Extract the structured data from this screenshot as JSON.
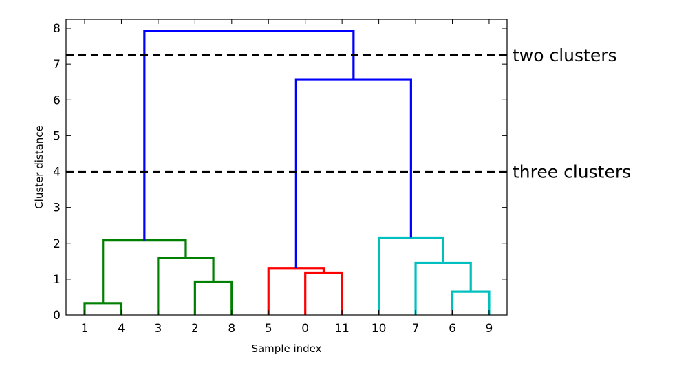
{
  "chart_data": {
    "type": "dendrogram",
    "xlabel": "Sample index",
    "ylabel": "Cluster distance",
    "ylim": [
      0,
      8.25
    ],
    "yticks": [
      0,
      1,
      2,
      3,
      4,
      5,
      6,
      7,
      8
    ],
    "leaves": [
      "1",
      "4",
      "3",
      "2",
      "8",
      "5",
      "0",
      "11",
      "10",
      "7",
      "6",
      "9"
    ],
    "grid": false,
    "links": [
      {
        "left": [
          0,
          0
        ],
        "right": [
          1,
          0
        ],
        "height": 0.33,
        "color": "#008000"
      },
      {
        "left": [
          4,
          0
        ],
        "right": [
          3,
          0
        ],
        "height": 0.93,
        "color": "#008000"
      },
      {
        "left": [
          2,
          0
        ],
        "right": [
          3.5,
          0.93
        ],
        "height": 1.6,
        "color": "#008000"
      },
      {
        "left": [
          0.5,
          0.33
        ],
        "right": [
          2.75,
          1.6
        ],
        "height": 2.08,
        "color": "#008000"
      },
      {
        "left": [
          6,
          0
        ],
        "right": [
          7,
          0
        ],
        "height": 1.18,
        "color": "#ff0000"
      },
      {
        "left": [
          5,
          0
        ],
        "right": [
          6.5,
          1.18
        ],
        "height": 1.31,
        "color": "#ff0000"
      },
      {
        "left": [
          10,
          0
        ],
        "right": [
          11,
          0
        ],
        "height": 0.65,
        "color": "#00bfbf"
      },
      {
        "left": [
          9,
          0
        ],
        "right": [
          10.5,
          0.65
        ],
        "height": 1.45,
        "color": "#00bfbf"
      },
      {
        "left": [
          8,
          0
        ],
        "right": [
          9.75,
          1.45
        ],
        "height": 2.16,
        "color": "#00bfbf"
      },
      {
        "left": [
          5.75,
          1.31
        ],
        "right": [
          8.875,
          2.16
        ],
        "height": 6.56,
        "color": "#0000ff"
      },
      {
        "left": [
          1.625,
          2.08
        ],
        "right": [
          7.3125,
          6.56
        ],
        "height": 7.92,
        "color": "#0000ff"
      }
    ],
    "thresholds": [
      {
        "y": 7.25,
        "label": "two clusters"
      },
      {
        "y": 4.0,
        "label": "three clusters"
      }
    ]
  }
}
